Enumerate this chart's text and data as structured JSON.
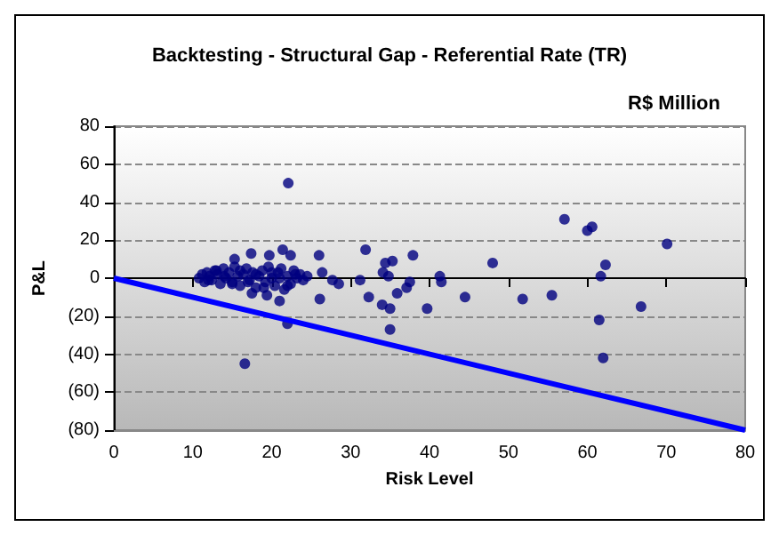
{
  "chart_data": {
    "type": "scatter",
    "title": "Backtesting - Structural Gap - Referential Rate (TR)",
    "annotations": [
      "R$ Million"
    ],
    "xlabel": "Risk Level",
    "ylabel": "P&L",
    "xlim": [
      0,
      80
    ],
    "xticks": [
      0,
      10,
      20,
      30,
      40,
      50,
      60,
      70,
      80
    ],
    "ylim": [
      -80,
      80
    ],
    "yticks": [
      {
        "value": -80,
        "label": "(80)"
      },
      {
        "value": -60,
        "label": "(60)"
      },
      {
        "value": -40,
        "label": "(40)"
      },
      {
        "value": -20,
        "label": "(20)"
      },
      0,
      20,
      40,
      60,
      80
    ],
    "grid": "y",
    "marker": "circle",
    "series": [
      {
        "color": "#000080",
        "x": [
          10.8,
          11.2,
          11.5,
          11.8,
          12.1,
          12.4,
          12.8,
          13.1,
          13.5,
          13.9,
          14.2,
          14.6,
          15.0,
          15.3,
          15.7,
          16.0,
          16.4,
          16.8,
          17.2,
          17.6,
          18.0,
          18.4,
          18.8,
          19.2,
          19.6,
          20.0,
          20.4,
          20.8,
          21.2,
          21.6,
          22.0,
          22.4,
          22.8,
          23.2,
          23.6,
          24.0,
          24.5,
          12.0,
          13.0,
          14.0,
          15.0,
          16.0,
          17.0,
          18.0,
          19.0,
          20.0,
          21.0,
          22.0,
          23.0,
          15.3,
          17.4,
          19.7,
          21.4,
          22.4,
          21.0,
          19.4,
          17.5,
          22.1,
          16.6,
          22.0,
          26.0,
          26.1,
          26.4,
          27.7,
          28.5,
          31.2,
          31.9,
          32.3,
          34.0,
          34.1,
          34.4,
          35.0,
          35.0,
          35.3,
          34.8,
          35.9,
          37.1,
          37.5,
          37.9,
          39.7,
          41.3,
          41.5,
          44.5,
          48.0,
          51.8,
          55.5,
          57.1,
          60.0,
          60.6,
          61.5,
          61.7,
          62.0,
          62.3,
          66.8,
          70.1
        ],
        "values": [
          0,
          2,
          -2,
          3,
          1,
          -1,
          4,
          2,
          -3,
          5,
          0,
          3,
          -2,
          6,
          1,
          -4,
          2,
          5,
          -1,
          3,
          -5,
          1,
          4,
          -2,
          6,
          0,
          -4,
          3,
          5,
          -6,
          1,
          -3,
          4,
          0,
          2,
          -1,
          1,
          -1,
          4,
          1,
          -3,
          4,
          -2,
          2,
          -5,
          3,
          0,
          -4,
          2,
          10,
          13,
          12,
          15,
          12,
          -12,
          -9,
          -8,
          50,
          -45,
          -24,
          12,
          -11,
          3,
          -1,
          -3,
          -1,
          15,
          -10,
          -14,
          3,
          8,
          -16,
          -27,
          9,
          1,
          -8,
          -5,
          -2,
          12,
          -16,
          1,
          -2,
          -10,
          8,
          -11,
          -9,
          31,
          25,
          27,
          -22,
          1,
          -42,
          7,
          -15,
          18
        ]
      },
      {
        "type": "line",
        "color": "#0000ff",
        "x": [
          0,
          80
        ],
        "values": [
          0,
          -80
        ],
        "marker": "none",
        "line_style": "solid"
      }
    ]
  }
}
